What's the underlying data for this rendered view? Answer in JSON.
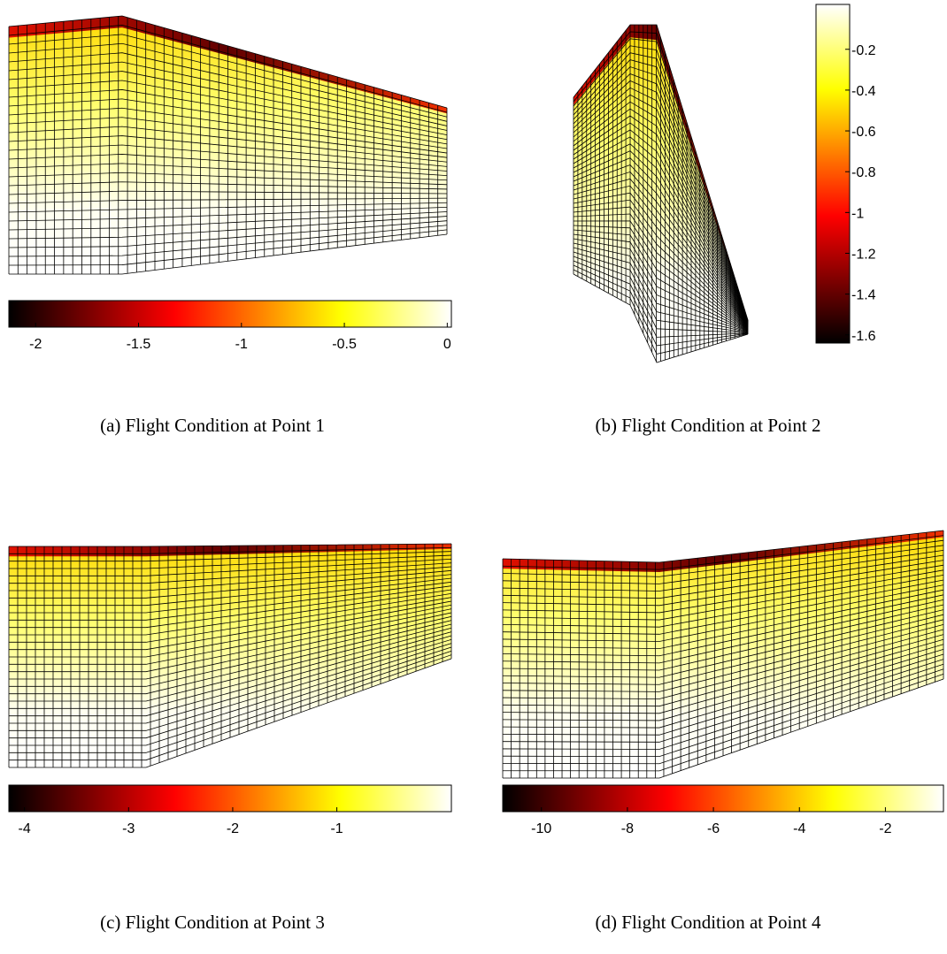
{
  "chart_data": [
    {
      "type": "surface",
      "caption": "(a) Flight Condition at Point 1",
      "colormap": "hot",
      "colorbar": "horizontal",
      "clim": [
        -2.13,
        0.02
      ],
      "cticks": [
        -2,
        -1.5,
        -1,
        -0.5,
        0
      ]
    },
    {
      "type": "surface",
      "caption": "(b) Flight Condition at Point 2",
      "colormap": "hot",
      "colorbar": "vertical",
      "clim": [
        -1.64,
        0.02
      ],
      "cticks": [
        -0.2,
        -0.4,
        -0.6,
        -0.8,
        -1,
        -1.2,
        -1.4,
        -1.6
      ]
    },
    {
      "type": "surface",
      "caption": "(c) Flight Condition at Point 3",
      "colormap": "hot",
      "colorbar": "horizontal",
      "clim": [
        -4.15,
        0.1
      ],
      "cticks": [
        -4,
        -3,
        -2,
        -1
      ]
    },
    {
      "type": "surface",
      "caption": "(d) Flight Condition at Point 4",
      "colormap": "hot",
      "colorbar": "horizontal",
      "clim": [
        -10.9,
        -0.65
      ],
      "cticks": [
        -10,
        -8,
        -6,
        -4,
        -2
      ]
    }
  ]
}
